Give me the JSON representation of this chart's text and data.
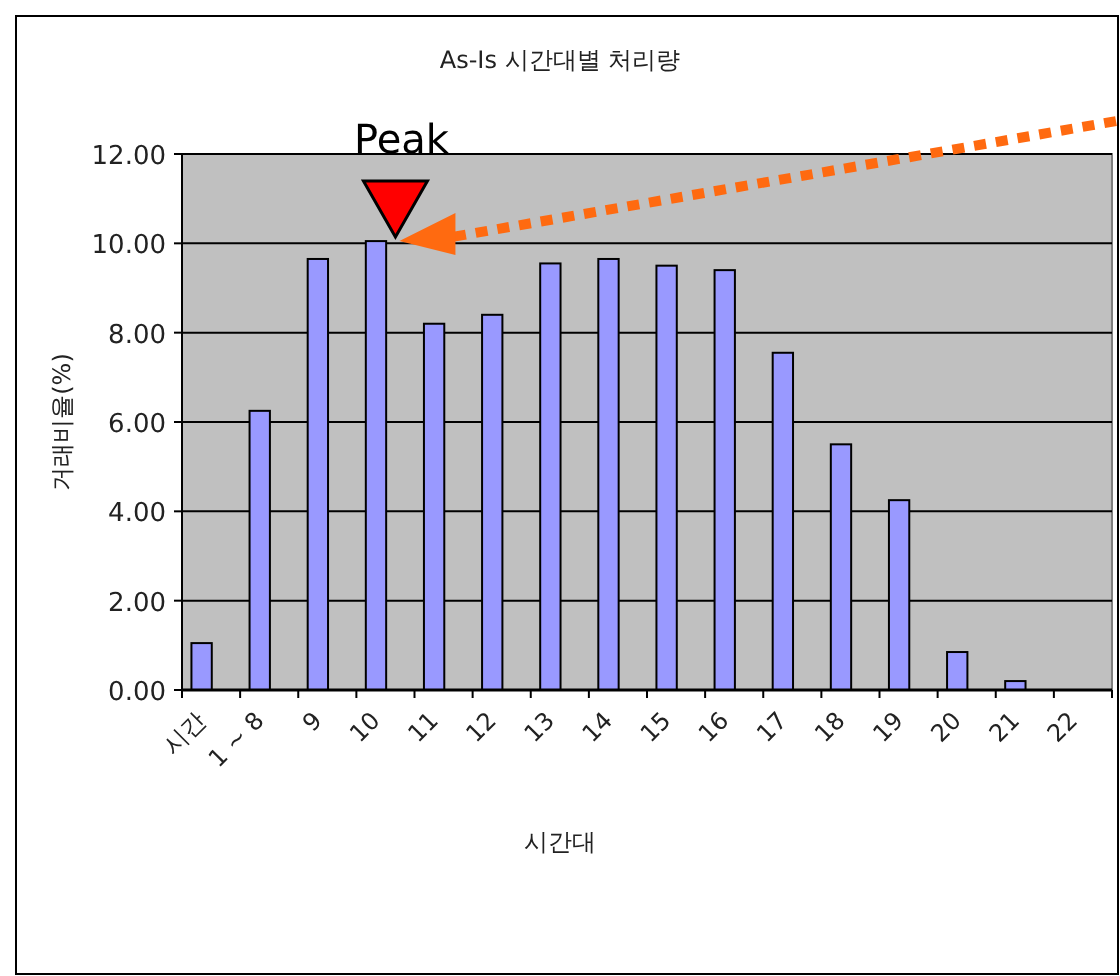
{
  "chart_data": {
    "type": "bar",
    "title": "As-Is 시간대별 처리량",
    "xlabel": "시간대",
    "ylabel": "거래비율(%)",
    "categories": [
      "시간",
      "1 ~ 8",
      "9",
      "10",
      "11",
      "12",
      "13",
      "14",
      "15",
      "16",
      "17",
      "18",
      "19",
      "20",
      "21",
      "22"
    ],
    "values": [
      1.05,
      6.25,
      9.65,
      10.05,
      8.2,
      8.4,
      9.55,
      9.65,
      9.5,
      9.4,
      7.55,
      5.5,
      4.25,
      0.85,
      0.2,
      null
    ],
    "color": "#9999ff",
    "ylim": [
      0,
      12
    ],
    "yticks": [
      {
        "value": 0,
        "label": "0.00"
      },
      {
        "value": 2,
        "label": "2.00"
      },
      {
        "value": 4,
        "label": "4.00"
      },
      {
        "value": 6,
        "label": "6.00"
      },
      {
        "value": 8,
        "label": "8.00"
      },
      {
        "value": 10,
        "label": "10.00"
      },
      {
        "value": 12,
        "label": "12.00"
      }
    ],
    "grid": "y",
    "annotations": [
      {
        "text": "Peak",
        "x": "10",
        "y": 10.05
      }
    ]
  }
}
